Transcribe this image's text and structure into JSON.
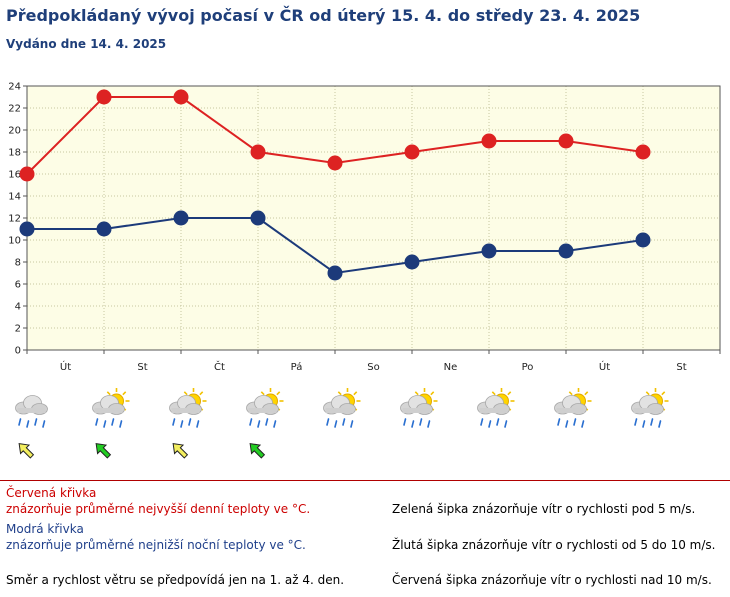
{
  "header": {
    "title": "Předpokládaný vývoj počasí v ČR od úterý 15. 4. do středy 23. 4. 2025",
    "subtitle": "Vydáno dne 14. 4. 2025"
  },
  "chart_data": {
    "type": "line",
    "categories": [
      "Út",
      "St",
      "Čt",
      "Pá",
      "So",
      "Ne",
      "Po",
      "Út",
      "St"
    ],
    "ylim": [
      0,
      24
    ],
    "yticks": [
      0,
      2,
      4,
      6,
      8,
      10,
      12,
      14,
      16,
      18,
      20,
      22,
      24
    ],
    "grid": true,
    "series": [
      {
        "name": "max",
        "color": "#dd2222",
        "values": [
          16,
          23,
          23,
          18,
          17,
          18,
          19,
          19,
          18
        ]
      },
      {
        "name": "min",
        "color": "#1c3a7a",
        "values": [
          11,
          11,
          12,
          12,
          7,
          8,
          9,
          9,
          10
        ]
      }
    ],
    "weather_icons": [
      "cloud-rain-icon",
      "sun-cloud-rain-icon",
      "sun-cloud-rain-icon",
      "sun-cloud-rain-icon",
      "sun-cloud-rain-icon",
      "sun-cloud-rain-icon",
      "sun-cloud-rain-icon",
      "sun-cloud-rain-icon",
      "sun-cloud-rain-icon"
    ],
    "wind_arrows": [
      {
        "color": "yellow",
        "hex": "#f3ee5e"
      },
      {
        "color": "green",
        "hex": "#22cc22"
      },
      {
        "color": "yellow",
        "hex": "#f3ee5e"
      },
      {
        "color": "green",
        "hex": "#22cc22"
      }
    ]
  },
  "legend": {
    "red_title": "Červená křivka",
    "red_desc": "znázorňuje průměrné nejvyšší denní teploty ve °C.",
    "blue_title": "Modrá křivka",
    "blue_desc": "znázorňuje průměrné nejnižší noční teploty ve °C.",
    "wind_note": "Směr a rychlost větru se předpovídá jen na 1. až 4. den.",
    "green_arrow": "Zelená šipka znázorňuje vítr o rychlosti pod 5 m/s.",
    "yellow_arrow": "Žlutá šipka znázorňuje vítr o rychlosti od 5 do 10 m/s.",
    "red_arrow": "Červená šipka znázorňuje vítr o rychlosti nad 10 m/s."
  }
}
